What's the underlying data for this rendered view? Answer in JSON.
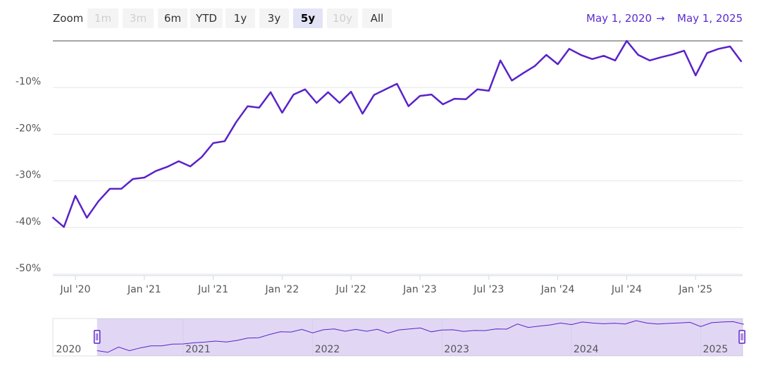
{
  "range_selector": {
    "label": "Zoom",
    "buttons": [
      {
        "text": "1m",
        "state": "disabled"
      },
      {
        "text": "3m",
        "state": "disabled"
      },
      {
        "text": "6m",
        "state": "normal"
      },
      {
        "text": "YTD",
        "state": "normal"
      },
      {
        "text": "1y",
        "state": "normal"
      },
      {
        "text": "3y",
        "state": "normal"
      },
      {
        "text": "5y",
        "state": "selected"
      },
      {
        "text": "10y",
        "state": "disabled"
      },
      {
        "text": "All",
        "state": "normal"
      }
    ]
  },
  "date_range": {
    "from": "May 1, 2020",
    "arrow": "→",
    "to": "May 1, 2025"
  },
  "chart_data": {
    "type": "line",
    "color": "#5a22c8",
    "x": [
      "2020-05",
      "2020-06",
      "2020-07",
      "2020-08",
      "2020-09",
      "2020-10",
      "2020-11",
      "2020-12",
      "2021-01",
      "2021-02",
      "2021-03",
      "2021-04",
      "2021-05",
      "2021-06",
      "2021-07",
      "2021-08",
      "2021-09",
      "2021-10",
      "2021-11",
      "2021-12",
      "2022-01",
      "2022-02",
      "2022-03",
      "2022-04",
      "2022-05",
      "2022-06",
      "2022-07",
      "2022-08",
      "2022-09",
      "2022-10",
      "2022-11",
      "2022-12",
      "2023-01",
      "2023-02",
      "2023-03",
      "2023-04",
      "2023-05",
      "2023-06",
      "2023-07",
      "2023-08",
      "2023-09",
      "2023-10",
      "2023-11",
      "2023-12",
      "2024-01",
      "2024-02",
      "2024-03",
      "2024-04",
      "2024-05",
      "2024-06",
      "2024-07",
      "2024-08",
      "2024-09",
      "2024-10",
      "2024-11",
      "2024-12",
      "2025-01",
      "2025-02",
      "2025-03",
      "2025-04",
      "2025-05"
    ],
    "values": [
      -37.8,
      -39.9,
      -33.2,
      -37.9,
      -34.4,
      -31.7,
      -31.7,
      -29.6,
      -29.3,
      -27.9,
      -27.0,
      -25.8,
      -26.9,
      -24.9,
      -21.9,
      -21.5,
      -17.4,
      -14.0,
      -14.3,
      -11.0,
      -15.4,
      -11.5,
      -10.4,
      -13.3,
      -11.0,
      -13.3,
      -10.9,
      -15.6,
      -11.6,
      -10.4,
      -9.2,
      -14.0,
      -11.8,
      -11.5,
      -13.6,
      -12.4,
      -12.5,
      -10.4,
      -10.7,
      -4.2,
      -8.5,
      -6.9,
      -5.4,
      -3.0,
      -5.0,
      -1.7,
      -3.0,
      -3.9,
      -3.2,
      -4.2,
      0,
      -3.0,
      -4.2,
      -3.5,
      -2.9,
      -2.1,
      -7.4,
      -2.6,
      -1.7,
      -1.2,
      -4.5
    ],
    "ylim": [
      -50,
      0
    ],
    "yticks": [
      {
        "value": -50,
        "label": "-50%"
      },
      {
        "value": -40,
        "label": "-40%"
      },
      {
        "value": -30,
        "label": "-30%"
      },
      {
        "value": -20,
        "label": "-20%"
      },
      {
        "value": -10,
        "label": "-10%"
      }
    ],
    "xticks": [
      {
        "value": "2020-07",
        "label": "Jul '20"
      },
      {
        "value": "2021-01",
        "label": "Jan '21"
      },
      {
        "value": "2021-07",
        "label": "Jul '21"
      },
      {
        "value": "2022-01",
        "label": "Jan '22"
      },
      {
        "value": "2022-07",
        "label": "Jul '22"
      },
      {
        "value": "2023-01",
        "label": "Jan '23"
      },
      {
        "value": "2023-07",
        "label": "Jul '23"
      },
      {
        "value": "2024-01",
        "label": "Jan '24"
      },
      {
        "value": "2024-07",
        "label": "Jul '24"
      },
      {
        "value": "2025-01",
        "label": "Jan '25"
      }
    ],
    "grid": true
  },
  "navigator": {
    "labels": [
      "2020",
      "2021",
      "2022",
      "2023",
      "2024",
      "2025"
    ]
  }
}
